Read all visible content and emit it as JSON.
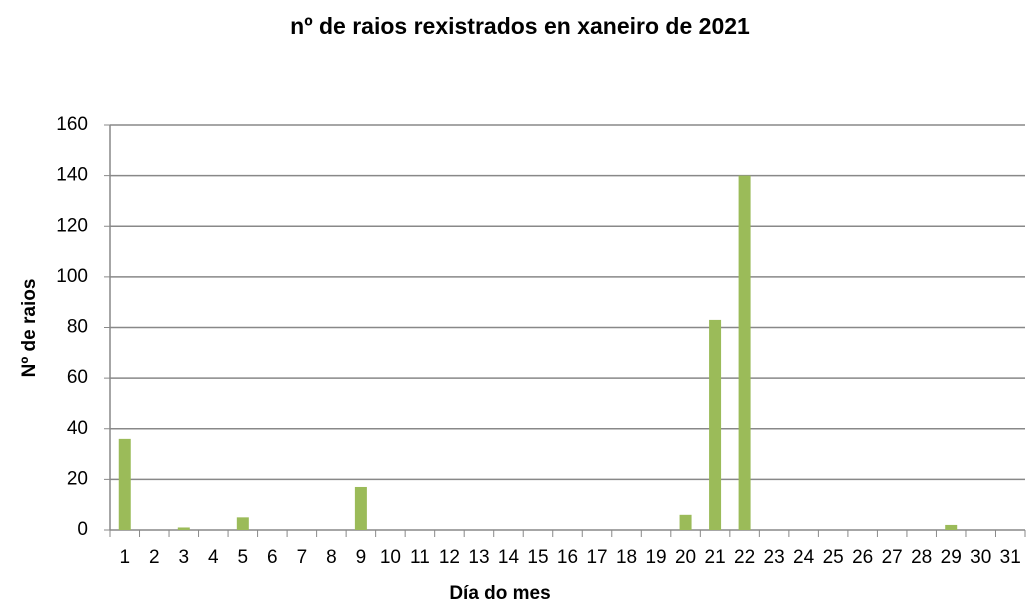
{
  "chart_data": {
    "type": "bar",
    "title": "nº de raios rexistrados en xaneiro de 2021",
    "x_label": "Día do mes",
    "y_label": "Nº de raios",
    "categories": [
      "1",
      "2",
      "3",
      "4",
      "5",
      "6",
      "7",
      "8",
      "9",
      "10",
      "11",
      "12",
      "13",
      "14",
      "15",
      "16",
      "17",
      "18",
      "19",
      "20",
      "21",
      "22",
      "23",
      "24",
      "25",
      "26",
      "27",
      "28",
      "29",
      "30",
      "31"
    ],
    "values": [
      36,
      0,
      1,
      0,
      5,
      0,
      0,
      0,
      17,
      0,
      0,
      0,
      0,
      0,
      0,
      0,
      0,
      0,
      0,
      6,
      83,
      140,
      0,
      0,
      0,
      0,
      0,
      0,
      2,
      0,
      0
    ],
    "color": "#9bbb59",
    "ylim": [
      0,
      160
    ],
    "yticks": [
      0,
      20,
      40,
      60,
      80,
      100,
      120,
      140,
      160
    ],
    "grid": true
  }
}
